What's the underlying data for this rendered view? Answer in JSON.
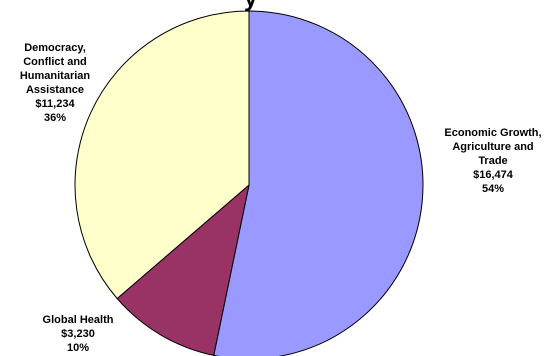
{
  "chart_data": {
    "type": "pie",
    "title": "y",
    "start_angle_deg": 0,
    "direction": "clockwise",
    "slices": [
      {
        "name_lines": [
          "Economic Growth,",
          "Agriculture and",
          "Trade"
        ],
        "value_label": "$16,474",
        "value": 16474,
        "percent_label": "54%",
        "color": "#9999ff"
      },
      {
        "name_lines": [
          "Global Health"
        ],
        "value_label": "$3,230",
        "value": 3230,
        "percent_label": "10%",
        "color": "#993366"
      },
      {
        "name_lines": [
          "Democracy,",
          "Conflict and",
          "Humanitarian",
          "Assistance"
        ],
        "value_label": "$11,234",
        "value": 11234,
        "percent_label": "36%",
        "color": "#ffffcc"
      }
    ]
  }
}
